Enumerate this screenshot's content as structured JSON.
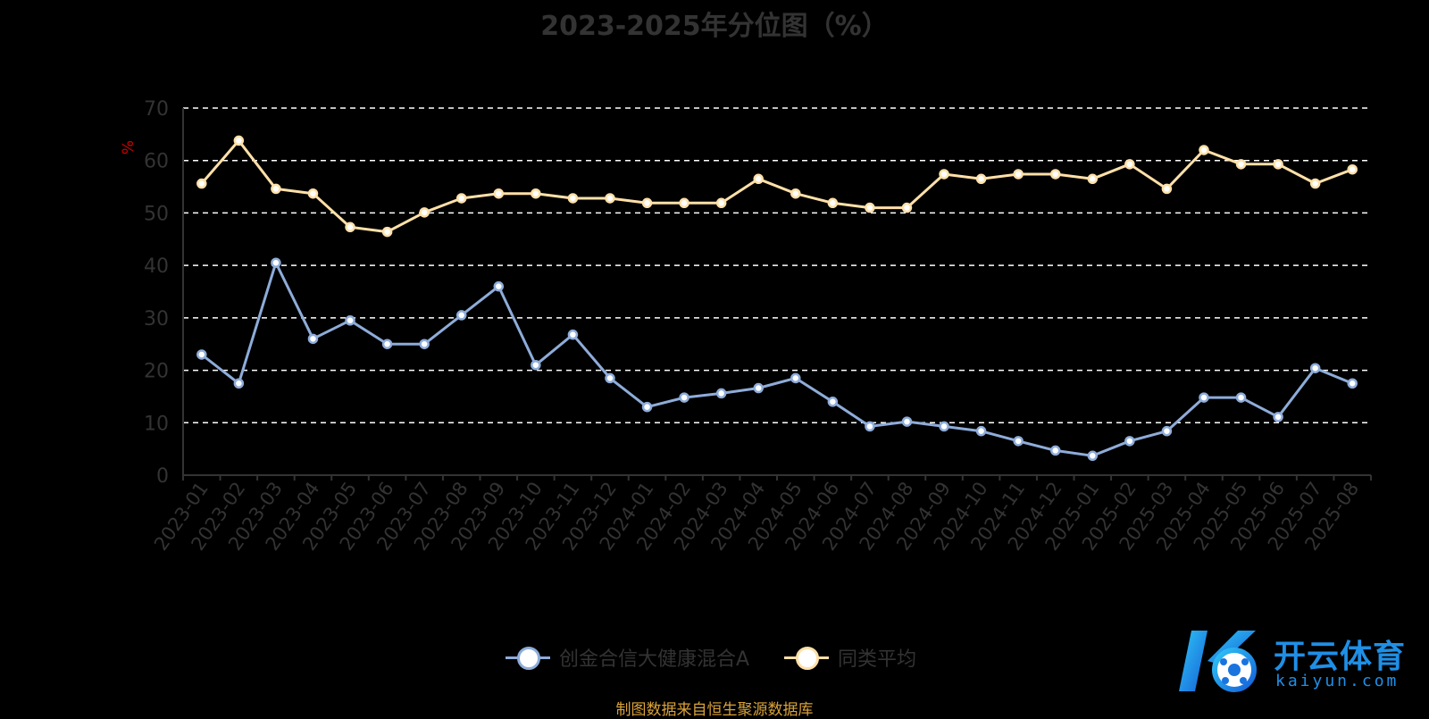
{
  "chart_data": {
    "type": "line",
    "title": "2023-2025年分位图（%）",
    "ylabel": "%",
    "ylim": [
      0,
      70
    ],
    "yticks": [
      0,
      10,
      20,
      30,
      40,
      50,
      60,
      70
    ],
    "grid": true,
    "legend_position": "bottom",
    "categories": [
      "2023-01",
      "2023-02",
      "2023-03",
      "2023-04",
      "2023-05",
      "2023-06",
      "2023-07",
      "2023-08",
      "2023-09",
      "2023-10",
      "2023-11",
      "2023-12",
      "2024-01",
      "2024-02",
      "2024-03",
      "2024-04",
      "2024-05",
      "2024-06",
      "2024-07",
      "2024-08",
      "2024-09",
      "2024-10",
      "2024-11",
      "2024-12",
      "2025-01",
      "2025-02",
      "2025-03",
      "2025-04",
      "2025-05",
      "2025-06",
      "2025-07",
      "2025-08"
    ],
    "series": [
      {
        "name": "创金合信大健康混合A",
        "color": "#8eacd9",
        "values": [
          23.0,
          17.5,
          40.5,
          26.0,
          29.5,
          25.0,
          25.0,
          30.5,
          36.0,
          21.0,
          26.8,
          18.5,
          13.0,
          14.8,
          15.6,
          16.6,
          18.5,
          14.0,
          9.3,
          10.2,
          9.3,
          8.4,
          6.5,
          4.7,
          3.7,
          6.5,
          8.4,
          14.8,
          14.8,
          11.1,
          20.4,
          17.5
        ]
      },
      {
        "name": "同类平均",
        "color": "#ffe0a8",
        "values": [
          55.6,
          63.8,
          54.6,
          53.7,
          47.3,
          46.4,
          50.1,
          52.8,
          53.7,
          53.7,
          52.8,
          52.8,
          51.9,
          51.9,
          51.9,
          56.5,
          53.7,
          51.9,
          51.0,
          51.0,
          57.4,
          56.5,
          57.4,
          57.4,
          56.5,
          59.3,
          54.6,
          62.0,
          59.3,
          59.3,
          55.6,
          58.3
        ]
      }
    ]
  },
  "footer": {
    "source_note": "制图数据来自恒生聚源数据库"
  },
  "watermark": {
    "brand": "开云体育",
    "domain": "kaiyun.com"
  },
  "colors": {
    "axis": "#333333",
    "grid": "#ffffff",
    "ylabel": "#cc0000",
    "source_note": "#d9a23a",
    "watermark": "#1f8fe6"
  }
}
